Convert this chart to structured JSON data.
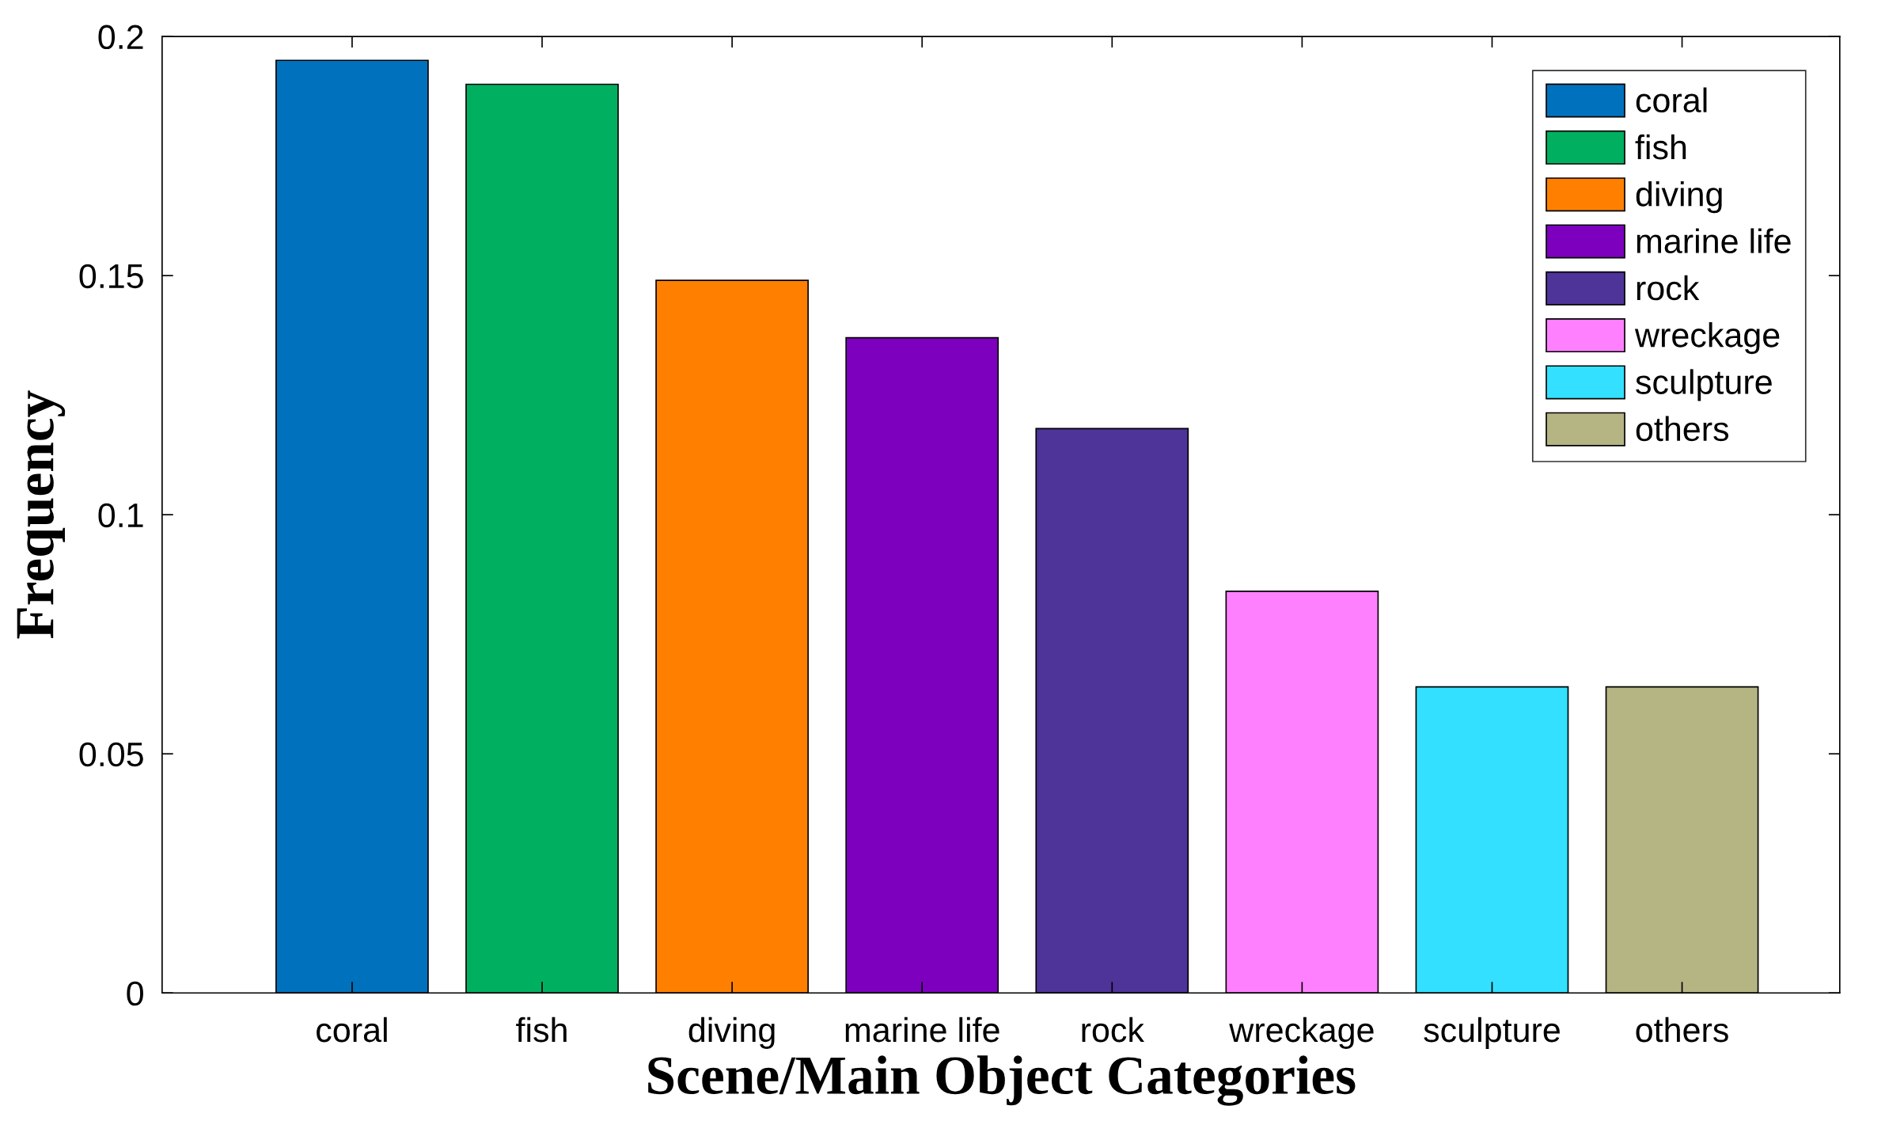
{
  "chart_data": {
    "type": "bar",
    "xlabel": "Scene/Main Object Categories",
    "ylabel": "Frequency",
    "categories": [
      "coral",
      "fish",
      "diving",
      "marine life",
      "rock",
      "wreckage",
      "sculpture",
      "others"
    ],
    "series": [
      {
        "name": "coral",
        "color": "#0072bd",
        "values": [
          0.195,
          null,
          null,
          null,
          null,
          null,
          null,
          null
        ]
      },
      {
        "name": "fish",
        "color": "#00b060",
        "values": [
          null,
          0.19,
          null,
          null,
          null,
          null,
          null,
          null
        ]
      },
      {
        "name": "diving",
        "color": "#ff8000",
        "values": [
          null,
          null,
          0.149,
          null,
          null,
          null,
          null,
          null
        ]
      },
      {
        "name": "marine life",
        "color": "#7e00bf",
        "values": [
          null,
          null,
          null,
          0.137,
          null,
          null,
          null,
          null
        ]
      },
      {
        "name": "rock",
        "color": "#4e3399",
        "values": [
          null,
          null,
          null,
          null,
          0.118,
          null,
          null,
          null
        ]
      },
      {
        "name": "wreckage",
        "color": "#ff80ff",
        "values": [
          null,
          null,
          null,
          null,
          null,
          0.084,
          null,
          null
        ]
      },
      {
        "name": "sculpture",
        "color": "#33e0ff",
        "values": [
          null,
          null,
          null,
          null,
          null,
          null,
          0.064,
          null
        ]
      },
      {
        "name": "others",
        "color": "#b5b483",
        "values": [
          null,
          null,
          null,
          null,
          null,
          null,
          null,
          0.064
        ]
      }
    ],
    "ylim": [
      0,
      0.2
    ],
    "yticks": [
      0,
      0.05,
      0.1,
      0.15,
      0.2
    ],
    "grid": false,
    "legend": "top right"
  }
}
